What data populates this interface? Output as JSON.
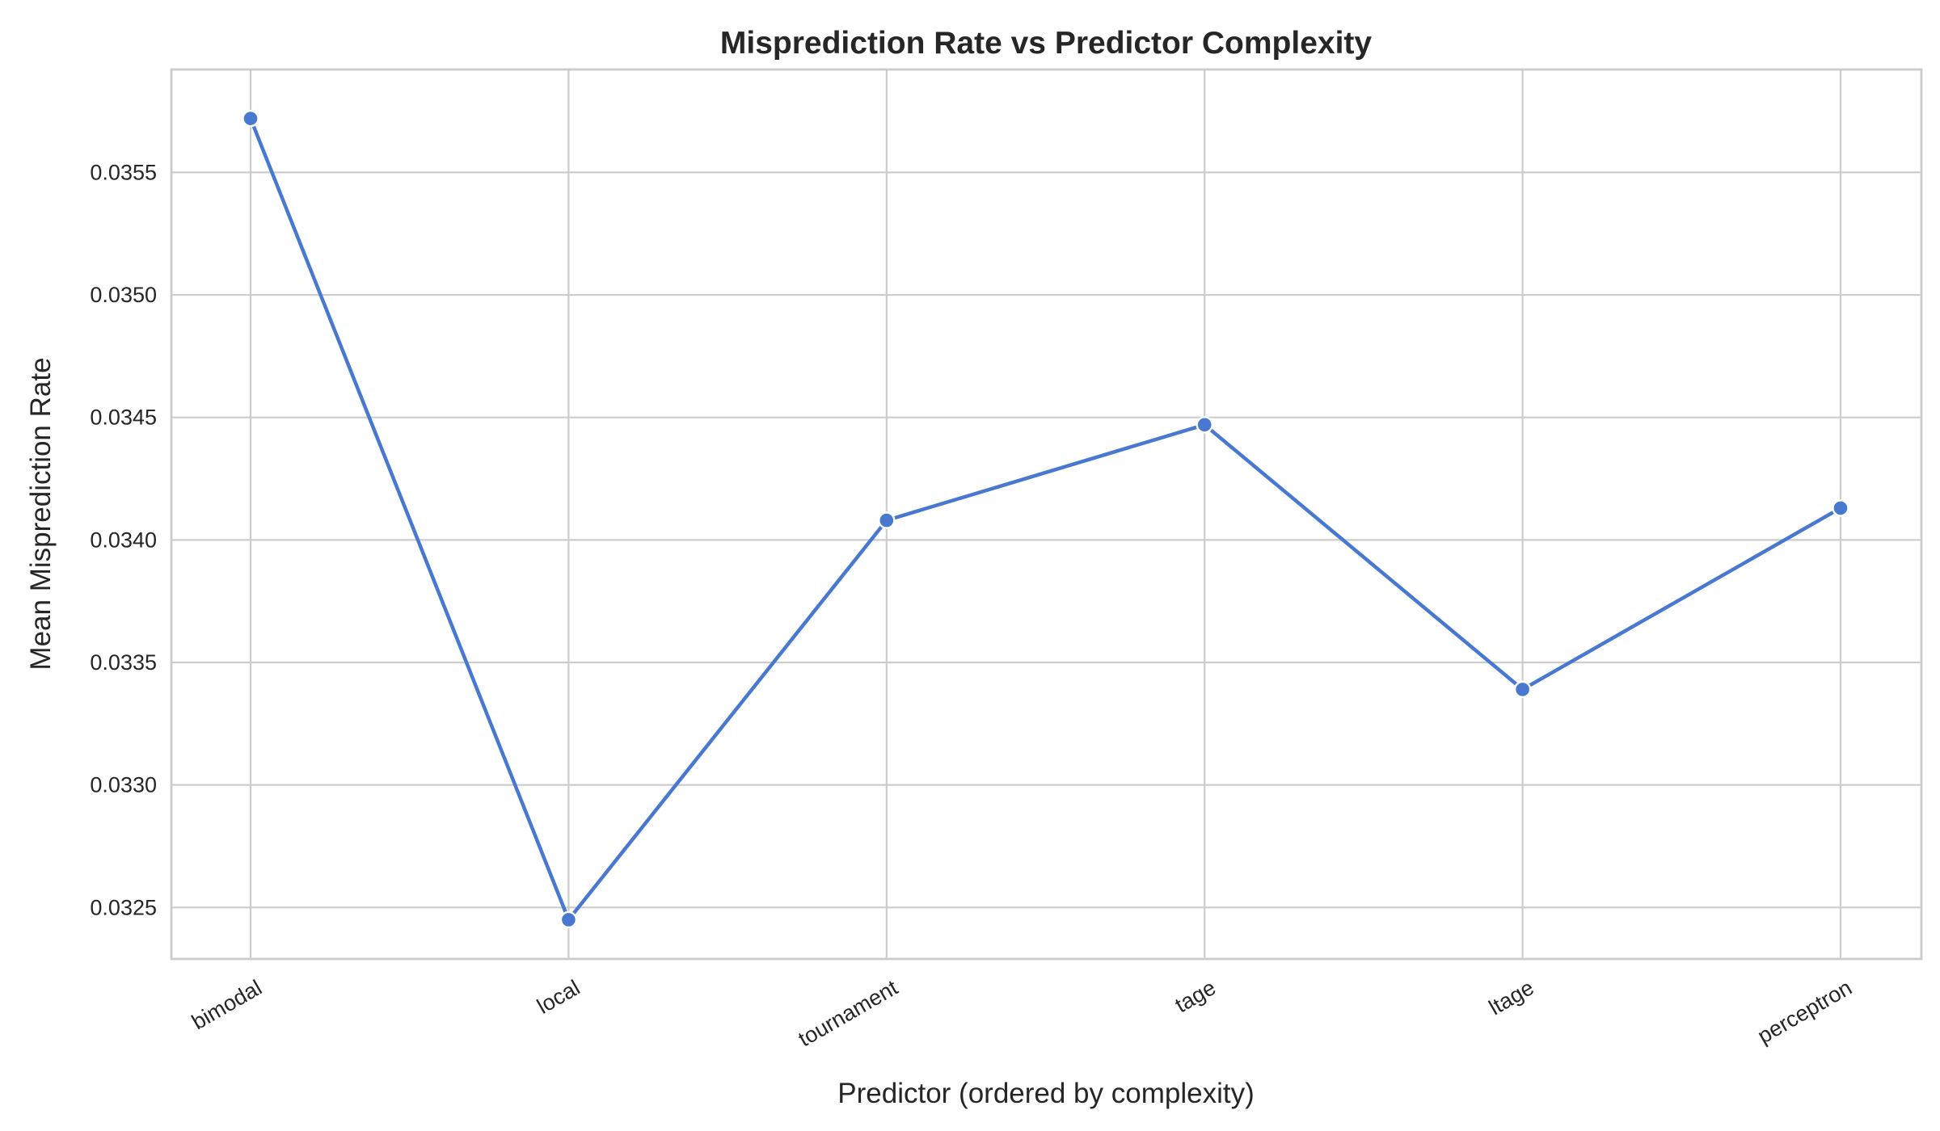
{
  "colors": {
    "series": "#4878cf",
    "grid": "#cccccc",
    "background": "#ffffff"
  },
  "chart_data": {
    "type": "line",
    "title": "Misprediction Rate vs Predictor Complexity",
    "xlabel": "Predictor (ordered by complexity)",
    "ylabel": "Mean Misprediction Rate",
    "categories": [
      "bimodal",
      "local",
      "tournament",
      "tage",
      "ltage",
      "perceptron"
    ],
    "values": [
      0.03572,
      0.03245,
      0.03408,
      0.03447,
      0.03339,
      0.03413
    ],
    "ylim": [
      0.03229,
      0.03592
    ],
    "yticks": [
      0.0325,
      0.033,
      0.0335,
      0.034,
      0.0345,
      0.035,
      0.0355
    ],
    "ytick_labels": [
      "0.0325",
      "0.0330",
      "0.0335",
      "0.0340",
      "0.0345",
      "0.0350",
      "0.0355"
    ],
    "grid": true,
    "markers": true,
    "legend": "none"
  }
}
